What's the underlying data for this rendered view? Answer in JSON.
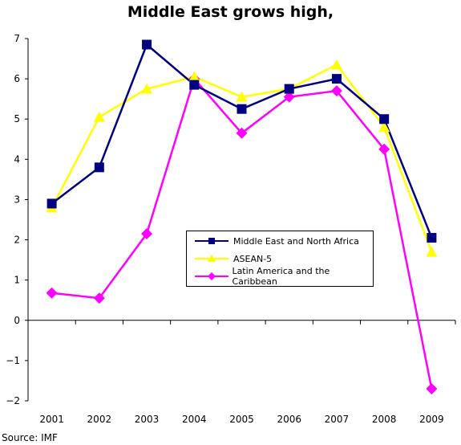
{
  "chart_data": {
    "type": "line",
    "title": "Middle East grows high,",
    "x": [
      "2001",
      "2002",
      "2003",
      "2004",
      "2005",
      "2006",
      "2007",
      "2008",
      "2009"
    ],
    "yticks": [
      "7",
      "6",
      "5",
      "4",
      "3",
      "2",
      "1",
      "0",
      "−1",
      "−2"
    ],
    "ylim": [
      -2,
      7
    ],
    "grid": false,
    "legend_position": "center-right",
    "series": [
      {
        "name": "Middle East and North Africa",
        "color": "#000080",
        "marker": "square",
        "values": [
          2.9,
          3.8,
          6.85,
          5.85,
          5.25,
          5.75,
          6.0,
          5.0,
          2.05
        ]
      },
      {
        "name": "ASEAN-5",
        "color": "#FFFF00",
        "marker": "triangle",
        "values": [
          2.8,
          5.05,
          5.75,
          6.05,
          5.55,
          5.75,
          6.35,
          4.8,
          1.7
        ]
      },
      {
        "name": "Latin America and the Caribbean",
        "color": "#FF00FF",
        "marker": "diamond",
        "values": [
          0.68,
          0.55,
          2.15,
          6.0,
          4.65,
          5.55,
          5.7,
          4.25,
          -1.7
        ]
      }
    ]
  },
  "footer": {
    "source": "Source: IMF"
  }
}
